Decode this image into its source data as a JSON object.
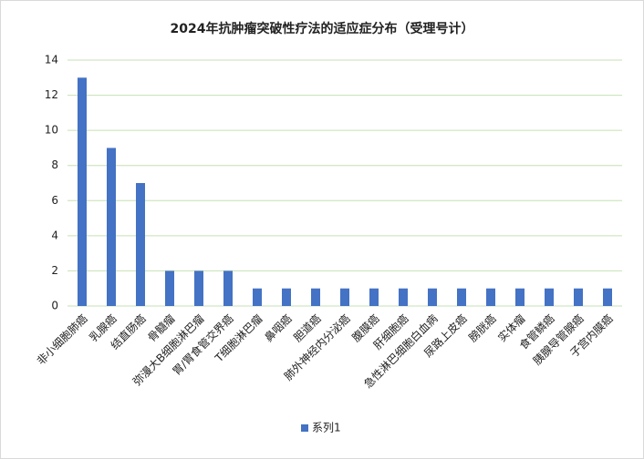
{
  "chart_data": {
    "type": "bar",
    "title": "2024年抗肿瘤突破性疗法的适应症分布（受理号计）",
    "categories": [
      "非小细胞肺癌",
      "乳腺癌",
      "结直肠癌",
      "骨髓瘤",
      "弥漫大B细胞淋巴瘤",
      "胃/胃食管交界癌",
      "T细胞淋巴瘤",
      "鼻咽癌",
      "胆道癌",
      "肺外神经内分泌癌",
      "腹膜癌",
      "肝细胞癌",
      "急性淋巴细胞白血病",
      "尿路上皮癌",
      "膀胱癌",
      "实体瘤",
      "食管鳞癌",
      "胰腺导管腺癌",
      "子宫内膜癌"
    ],
    "series": [
      {
        "name": "系列1",
        "color": "#4472c4",
        "values": [
          13,
          9,
          7,
          2,
          2,
          2,
          1,
          1,
          1,
          1,
          1,
          1,
          1,
          1,
          1,
          1,
          1,
          1,
          1
        ]
      }
    ],
    "ylim": [
      0,
      14
    ],
    "yticks": [
      0,
      2,
      4,
      6,
      8,
      10,
      12,
      14
    ],
    "grid": true,
    "legend": "bottom"
  }
}
